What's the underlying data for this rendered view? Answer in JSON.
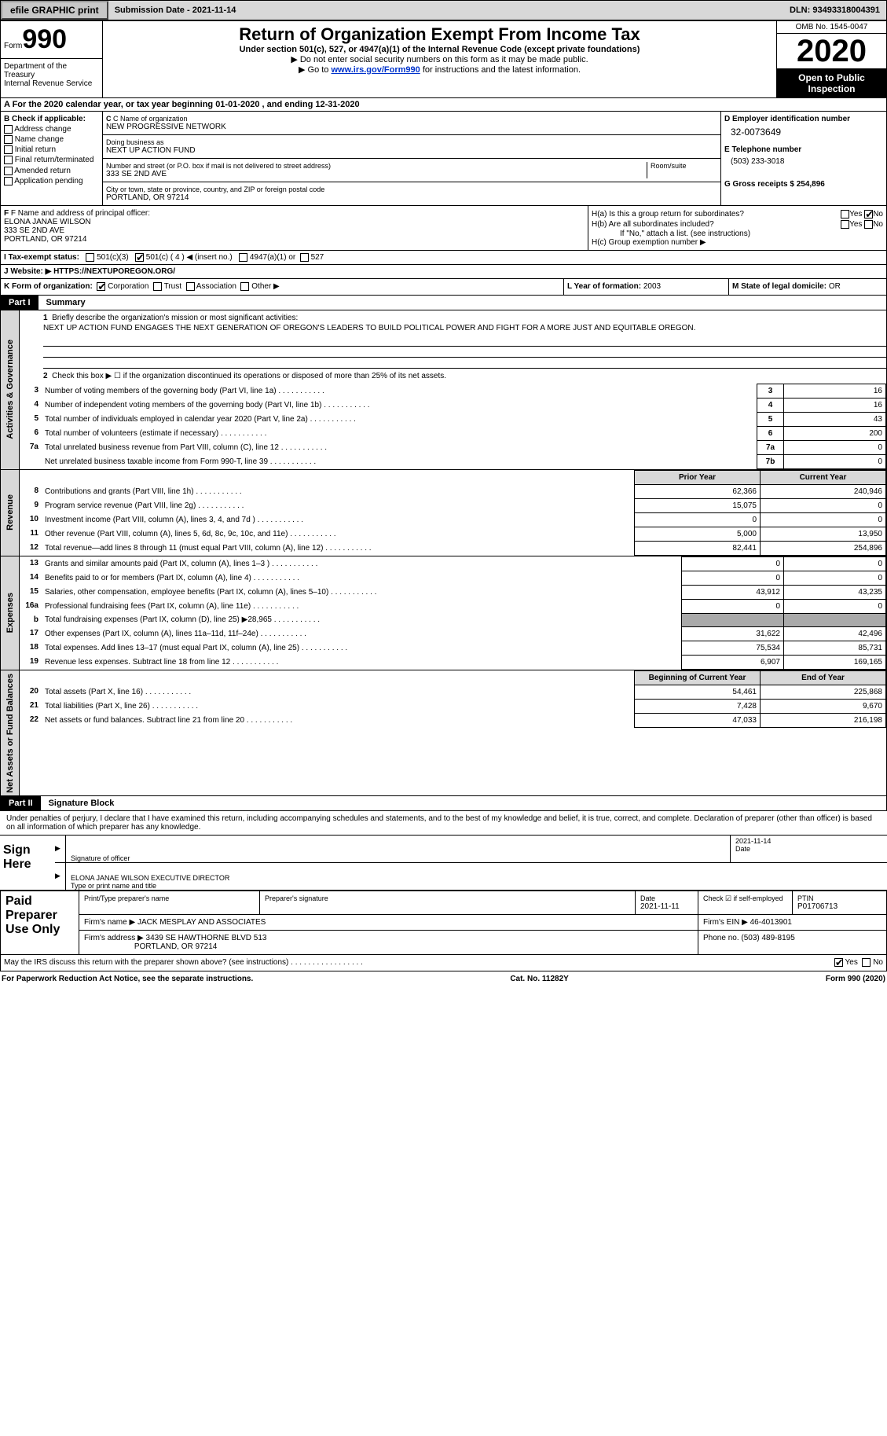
{
  "topbar": {
    "efile_btn": "efile GRAPHIC print",
    "subdate_label": "Submission Date - ",
    "subdate": "2021-11-14",
    "dln_label": "DLN: ",
    "dln": "93493318004391"
  },
  "header": {
    "form_word": "Form",
    "form_no": "990",
    "dept": "Department of the Treasury\nInternal Revenue Service",
    "title": "Return of Organization Exempt From Income Tax",
    "sub": "Under section 501(c), 527, or 4947(a)(1) of the Internal Revenue Code (except private foundations)",
    "sub2a": "▶ Do not enter social security numbers on this form as it may be made public.",
    "sub2b_prefix": "▶ Go to ",
    "sub2b_link": "www.irs.gov/Form990",
    "sub2b_suffix": " for instructions and the latest information.",
    "omb": "OMB No. 1545-0047",
    "year": "2020",
    "open": "Open to Public Inspection"
  },
  "line_a": "A For the 2020 calendar year, or tax year beginning 01-01-2020   , and ending 12-31-2020",
  "section_b": {
    "label": "B Check if applicable:",
    "addr": "Address change",
    "name": "Name change",
    "initial": "Initial return",
    "final": "Final return/terminated",
    "amended": "Amended return",
    "app": "Application pending"
  },
  "section_c": {
    "name_label": "C Name of organization",
    "name": "NEW PROGRESSIVE NETWORK",
    "dba_label": "Doing business as",
    "dba": "NEXT UP ACTION FUND",
    "addr_label": "Number and street (or P.O. box if mail is not delivered to street address)",
    "room_label": "Room/suite",
    "addr": "333 SE 2ND AVE",
    "city_label": "City or town, state or province, country, and ZIP or foreign postal code",
    "city": "PORTLAND, OR  97214"
  },
  "section_d": {
    "ein_label": "D Employer identification number",
    "ein": "32-0073649",
    "tel_label": "E Telephone number",
    "tel": "(503) 233-3018",
    "gross_label": "G Gross receipts $ ",
    "gross": "254,896"
  },
  "section_f": {
    "label": "F Name and address of principal officer:",
    "name": "ELONA JANAE WILSON",
    "addr1": "333 SE 2ND AVE",
    "addr2": "PORTLAND, OR  97214"
  },
  "section_h": {
    "a": "H(a)  Is this a group return for subordinates?",
    "b": "H(b)  Are all subordinates included?",
    "note": "If \"No,\" attach a list. (see instructions)",
    "c": "H(c)  Group exemption number ▶",
    "yes": "Yes",
    "no": "No"
  },
  "row_i": {
    "label": "I   Tax-exempt status:",
    "o1": "501(c)(3)",
    "o2": "501(c) ( 4 ) ◀ (insert no.)",
    "o3": "4947(a)(1) or",
    "o4": "527"
  },
  "row_j": {
    "label": "J   Website: ▶  ",
    "url": "HTTPS://NEXTUPOREGON.ORG/"
  },
  "row_k": {
    "label": "K Form of organization:",
    "corp": "Corporation",
    "trust": "Trust",
    "assoc": "Association",
    "other": "Other ▶"
  },
  "row_l": {
    "label": "L Year of formation: ",
    "val": "2003"
  },
  "row_m": {
    "label": "M State of legal domicile: ",
    "val": "OR"
  },
  "part1": {
    "label": "Part I",
    "name": "Summary",
    "tab_gov": "Activities & Governance",
    "tab_rev": "Revenue",
    "tab_exp": "Expenses",
    "tab_net": "Net Assets or Fund Balances",
    "q1": "Briefly describe the organization's mission or most significant activities:",
    "mission": "NEXT UP ACTION FUND ENGAGES THE NEXT GENERATION OF OREGON'S LEADERS TO BUILD POLITICAL POWER AND FIGHT FOR A MORE JUST AND EQUITABLE OREGON.",
    "q2": "Check this box ▶ ☐  if the organization discontinued its operations or disposed of more than 25% of its net assets.",
    "rows_gov": [
      {
        "n": "3",
        "q": "Number of voting members of the governing body (Part VI, line 1a)",
        "box": "3",
        "v": "16"
      },
      {
        "n": "4",
        "q": "Number of independent voting members of the governing body (Part VI, line 1b)",
        "box": "4",
        "v": "16"
      },
      {
        "n": "5",
        "q": "Total number of individuals employed in calendar year 2020 (Part V, line 2a)",
        "box": "5",
        "v": "43"
      },
      {
        "n": "6",
        "q": "Total number of volunteers (estimate if necessary)",
        "box": "6",
        "v": "200"
      },
      {
        "n": "7a",
        "q": "Total unrelated business revenue from Part VIII, column (C), line 12",
        "box": "7a",
        "v": "0"
      },
      {
        "n": "",
        "q": "Net unrelated business taxable income from Form 990-T, line 39",
        "box": "7b",
        "v": "0"
      }
    ],
    "hdr_prior": "Prior Year",
    "hdr_curr": "Current Year",
    "rows_rev": [
      {
        "n": "8",
        "q": "Contributions and grants (Part VIII, line 1h)",
        "p": "62,366",
        "c": "240,946"
      },
      {
        "n": "9",
        "q": "Program service revenue (Part VIII, line 2g)",
        "p": "15,075",
        "c": "0"
      },
      {
        "n": "10",
        "q": "Investment income (Part VIII, column (A), lines 3, 4, and 7d )",
        "p": "0",
        "c": "0"
      },
      {
        "n": "11",
        "q": "Other revenue (Part VIII, column (A), lines 5, 6d, 8c, 9c, 10c, and 11e)",
        "p": "5,000",
        "c": "13,950"
      },
      {
        "n": "12",
        "q": "Total revenue—add lines 8 through 11 (must equal Part VIII, column (A), line 12)",
        "p": "82,441",
        "c": "254,896"
      }
    ],
    "rows_exp": [
      {
        "n": "13",
        "q": "Grants and similar amounts paid (Part IX, column (A), lines 1–3 )",
        "p": "0",
        "c": "0"
      },
      {
        "n": "14",
        "q": "Benefits paid to or for members (Part IX, column (A), line 4)",
        "p": "0",
        "c": "0"
      },
      {
        "n": "15",
        "q": "Salaries, other compensation, employee benefits (Part IX, column (A), lines 5–10)",
        "p": "43,912",
        "c": "43,235"
      },
      {
        "n": "16a",
        "q": "Professional fundraising fees (Part IX, column (A), line 11e)",
        "p": "0",
        "c": "0"
      },
      {
        "n": "b",
        "q": "Total fundraising expenses (Part IX, column (D), line 25) ▶28,965",
        "p": "grey",
        "c": "grey"
      },
      {
        "n": "17",
        "q": "Other expenses (Part IX, column (A), lines 11a–11d, 11f–24e)",
        "p": "31,622",
        "c": "42,496"
      },
      {
        "n": "18",
        "q": "Total expenses. Add lines 13–17 (must equal Part IX, column (A), line 25)",
        "p": "75,534",
        "c": "85,731"
      },
      {
        "n": "19",
        "q": "Revenue less expenses. Subtract line 18 from line 12",
        "p": "6,907",
        "c": "169,165"
      }
    ],
    "hdr_beg": "Beginning of Current Year",
    "hdr_end": "End of Year",
    "rows_net": [
      {
        "n": "20",
        "q": "Total assets (Part X, line 16)",
        "p": "54,461",
        "c": "225,868"
      },
      {
        "n": "21",
        "q": "Total liabilities (Part X, line 26)",
        "p": "7,428",
        "c": "9,670"
      },
      {
        "n": "22",
        "q": "Net assets or fund balances. Subtract line 21 from line 20",
        "p": "47,033",
        "c": "216,198"
      }
    ]
  },
  "part2": {
    "label": "Part II",
    "name": "Signature Block",
    "text": "Under penalties of perjury, I declare that I have examined this return, including accompanying schedules and statements, and to the best of my knowledge and belief, it is true, correct, and complete. Declaration of preparer (other than officer) is based on all information of which preparer has any knowledge.",
    "sign_here": "Sign Here",
    "sig_officer_label": "Signature of officer",
    "date_label": "Date",
    "sig_date": "2021-11-14",
    "officer_name": "ELONA JANAE WILSON  EXECUTIVE DIRECTOR",
    "officer_name_label": "Type or print name and title",
    "paid": "Paid Preparer Use Only",
    "prep_name_label": "Print/Type preparer's name",
    "prep_sig_label": "Preparer's signature",
    "prep_date_label": "Date",
    "prep_date": "2021-11-11",
    "check_self": "Check ☑ if self-employed",
    "ptin_label": "PTIN",
    "ptin": "P01706713",
    "firm_name_label": "Firm's name   ▶ ",
    "firm_name": "JACK MESPLAY AND ASSOCIATES",
    "firm_ein_label": "Firm's EIN ▶ ",
    "firm_ein": "46-4013901",
    "firm_addr_label": "Firm's address ▶ ",
    "firm_addr1": "3439 SE HAWTHORNE BLVD 513",
    "firm_addr2": "PORTLAND, OR  97214",
    "phone_label": "Phone no. ",
    "phone": "(503) 489-8195",
    "discuss": "May the IRS discuss this return with the preparer shown above? (see instructions)  .  .  .  .  .  .  .  .  .  .  .  .  .  .  .  .  .",
    "discuss_yes": "Yes",
    "discuss_no": "No"
  },
  "footer": {
    "left": "For Paperwork Reduction Act Notice, see the separate instructions.",
    "mid": "Cat. No. 11282Y",
    "right": "Form 990 (2020)"
  }
}
